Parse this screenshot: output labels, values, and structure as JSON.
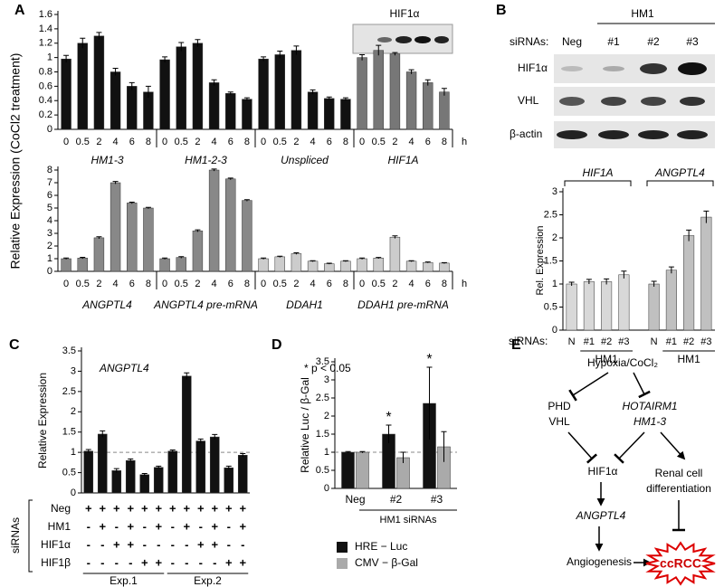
{
  "panel_labels": [
    "A",
    "B",
    "C",
    "D",
    "E"
  ],
  "blot_a": {
    "label": "HIF1α"
  },
  "blot_b": {
    "group": "HM1",
    "lane_title": "siRNAs:",
    "lanes": [
      "Neg",
      "#1",
      "#2",
      "#3"
    ],
    "rows": [
      "HIF1α",
      "VHL",
      "β-actin"
    ]
  },
  "diagram": {
    "stimulus": "Hypoxia/CoCl₂",
    "phd": [
      "PHD",
      "VHL"
    ],
    "lnc": [
      "HOTAIRM1",
      "HM1-3"
    ],
    "hif": "HIF1α",
    "target": "ANGPTL4",
    "renal": [
      "Renal cell",
      "differentiation"
    ],
    "angio": "Angiogenesis",
    "outcome": "ccRCC"
  },
  "chart_data": [
    {
      "type": "bar",
      "y_label": "Relative Expression (CoCl2 treatment)",
      "x_unit": "h",
      "categories": [
        "0",
        "0.5",
        "2",
        "4",
        "6",
        "8"
      ],
      "series": [
        {
          "name": "HM1-3",
          "color": "#111111",
          "values": [
            0.98,
            1.2,
            1.3,
            0.8,
            0.6,
            0.52
          ],
          "errors": [
            0.05,
            0.07,
            0.05,
            0.05,
            0.05,
            0.08
          ]
        },
        {
          "name": "HM1-2-3",
          "color": "#111111",
          "values": [
            0.97,
            1.15,
            1.2,
            0.65,
            0.5,
            0.42
          ],
          "errors": [
            0.04,
            0.06,
            0.05,
            0.04,
            0.02,
            0.02
          ]
        },
        {
          "name": "Unspliced",
          "color": "#111111",
          "values": [
            0.98,
            1.04,
            1.1,
            0.52,
            0.43,
            0.42
          ],
          "errors": [
            0.03,
            0.05,
            0.06,
            0.03,
            0.02,
            0.02
          ]
        },
        {
          "name": "HIF1A",
          "color": "#777777",
          "values": [
            1.0,
            1.1,
            1.05,
            0.8,
            0.65,
            0.52
          ],
          "errors": [
            0.04,
            0.07,
            0.02,
            0.03,
            0.04,
            0.05
          ]
        }
      ],
      "ylim": [
        0,
        1.6
      ],
      "yticks": [
        0,
        0.2,
        0.4,
        0.6,
        0.8,
        1,
        1.2,
        1.4,
        1.6
      ]
    },
    {
      "type": "bar",
      "x_unit": "h",
      "categories": [
        "0",
        "0.5",
        "2",
        "4",
        "6",
        "8"
      ],
      "series": [
        {
          "name": "ANGPTL4",
          "color": "#888888",
          "values": [
            1,
            1.05,
            2.65,
            7,
            5.4,
            5
          ],
          "errors": [
            0.05,
            0.06,
            0.08,
            0.1,
            0.06,
            0.05
          ]
        },
        {
          "name": "ANGPTL4 pre-mRNA",
          "color": "#888888",
          "values": [
            1,
            1.1,
            3.2,
            8,
            7.3,
            5.6
          ],
          "errors": [
            0.05,
            0.06,
            0.08,
            0.08,
            0.07,
            0.06
          ]
        },
        {
          "name": "DDAH1",
          "color": "#cccccc",
          "values": [
            1,
            1.15,
            1.4,
            0.8,
            0.6,
            0.8
          ],
          "errors": [
            0.05,
            0.05,
            0.06,
            0.04,
            0.04,
            0.04
          ]
        },
        {
          "name": "DDAH1 pre-mRNA",
          "color": "#cccccc",
          "values": [
            1,
            1.05,
            2.7,
            0.8,
            0.7,
            0.65
          ],
          "errors": [
            0.05,
            0.05,
            0.1,
            0.04,
            0.04,
            0.04
          ]
        }
      ],
      "ylim": [
        0,
        8
      ],
      "yticks": [
        0,
        1,
        2,
        3,
        4,
        5,
        6,
        7,
        8
      ]
    },
    {
      "type": "bar",
      "y_label": "Rel. Expression",
      "x_prefix": "siRNAs:",
      "group_sublabel": "HM1",
      "categories": [
        "N",
        "#1",
        "#2",
        "#3"
      ],
      "series": [
        {
          "name": "HIF1A",
          "color": "#d8d8d8",
          "values": [
            1,
            1.05,
            1.05,
            1.2
          ],
          "errors": [
            0.04,
            0.05,
            0.06,
            0.08
          ]
        },
        {
          "name": "ANGPTL4",
          "color": "#c0c0c0",
          "values": [
            1,
            1.3,
            2.05,
            2.45
          ],
          "errors": [
            0.06,
            0.07,
            0.12,
            0.13
          ]
        }
      ],
      "ylim": [
        0,
        3
      ],
      "yticks": [
        0,
        0.5,
        1,
        1.5,
        2,
        2.5,
        3
      ]
    },
    {
      "type": "bar",
      "y_label": "Relative Expression",
      "annotation": "ANGPTL4",
      "color": "#111111",
      "values": [
        1.03,
        1.45,
        0.55,
        0.8,
        0.45,
        0.63,
        1.03,
        2.88,
        1.28,
        1.38,
        0.62,
        0.93
      ],
      "errors": [
        0.04,
        0.08,
        0.05,
        0.04,
        0.03,
        0.03,
        0.03,
        0.08,
        0.05,
        0.06,
        0.04,
        0.04
      ],
      "reference_line": 1,
      "ylim": [
        0,
        3.5
      ],
      "yticks": [
        0,
        0.5,
        1,
        1.5,
        2,
        2.5,
        3,
        3.5
      ],
      "conditions": {
        "label": "siRNAs",
        "rows": [
          {
            "name": "Neg",
            "signs": [
              "+",
              "+",
              "+",
              "+",
              "+",
              "+",
              "+",
              "+",
              "+",
              "+",
              "+",
              "+"
            ]
          },
          {
            "name": "HM1",
            "signs": [
              "-",
              "+",
              "-",
              "+",
              "-",
              "+",
              "-",
              "+",
              "-",
              "+",
              "-",
              "+"
            ]
          },
          {
            "name": "HIF1α",
            "signs": [
              "-",
              "-",
              "+",
              "+",
              "-",
              "-",
              "-",
              "-",
              "+",
              "+",
              "-",
              "-"
            ]
          },
          {
            "name": "HIF1β",
            "signs": [
              "-",
              "-",
              "-",
              "-",
              "+",
              "+",
              "-",
              "-",
              "-",
              "-",
              "+",
              "+"
            ]
          }
        ],
        "experiments": [
          "Exp.1",
          "Exp.2"
        ]
      }
    },
    {
      "type": "bar",
      "y_label": "Relative Luc / β-Gal",
      "note": "* p < 0.05",
      "significance_mark": "*",
      "significant": [
        false,
        true,
        true
      ],
      "x_group_label": "HM1 siRNAs",
      "categories": [
        "Neg",
        "#2",
        "#3"
      ],
      "series": [
        {
          "name": "HRE − Luc",
          "color": "#111111",
          "values": [
            1,
            1.5,
            2.35
          ],
          "errors": [
            0.02,
            0.25,
            1.0
          ]
        },
        {
          "name": "CMV − β-Gal",
          "color": "#aaaaaa",
          "values": [
            1,
            0.85,
            1.15
          ],
          "errors": [
            0.02,
            0.15,
            0.42
          ]
        }
      ],
      "reference_line": 1,
      "ylim": [
        0,
        3.5
      ],
      "yticks": [
        0,
        0.5,
        1,
        1.5,
        2,
        2.5,
        3,
        3.5
      ]
    }
  ]
}
